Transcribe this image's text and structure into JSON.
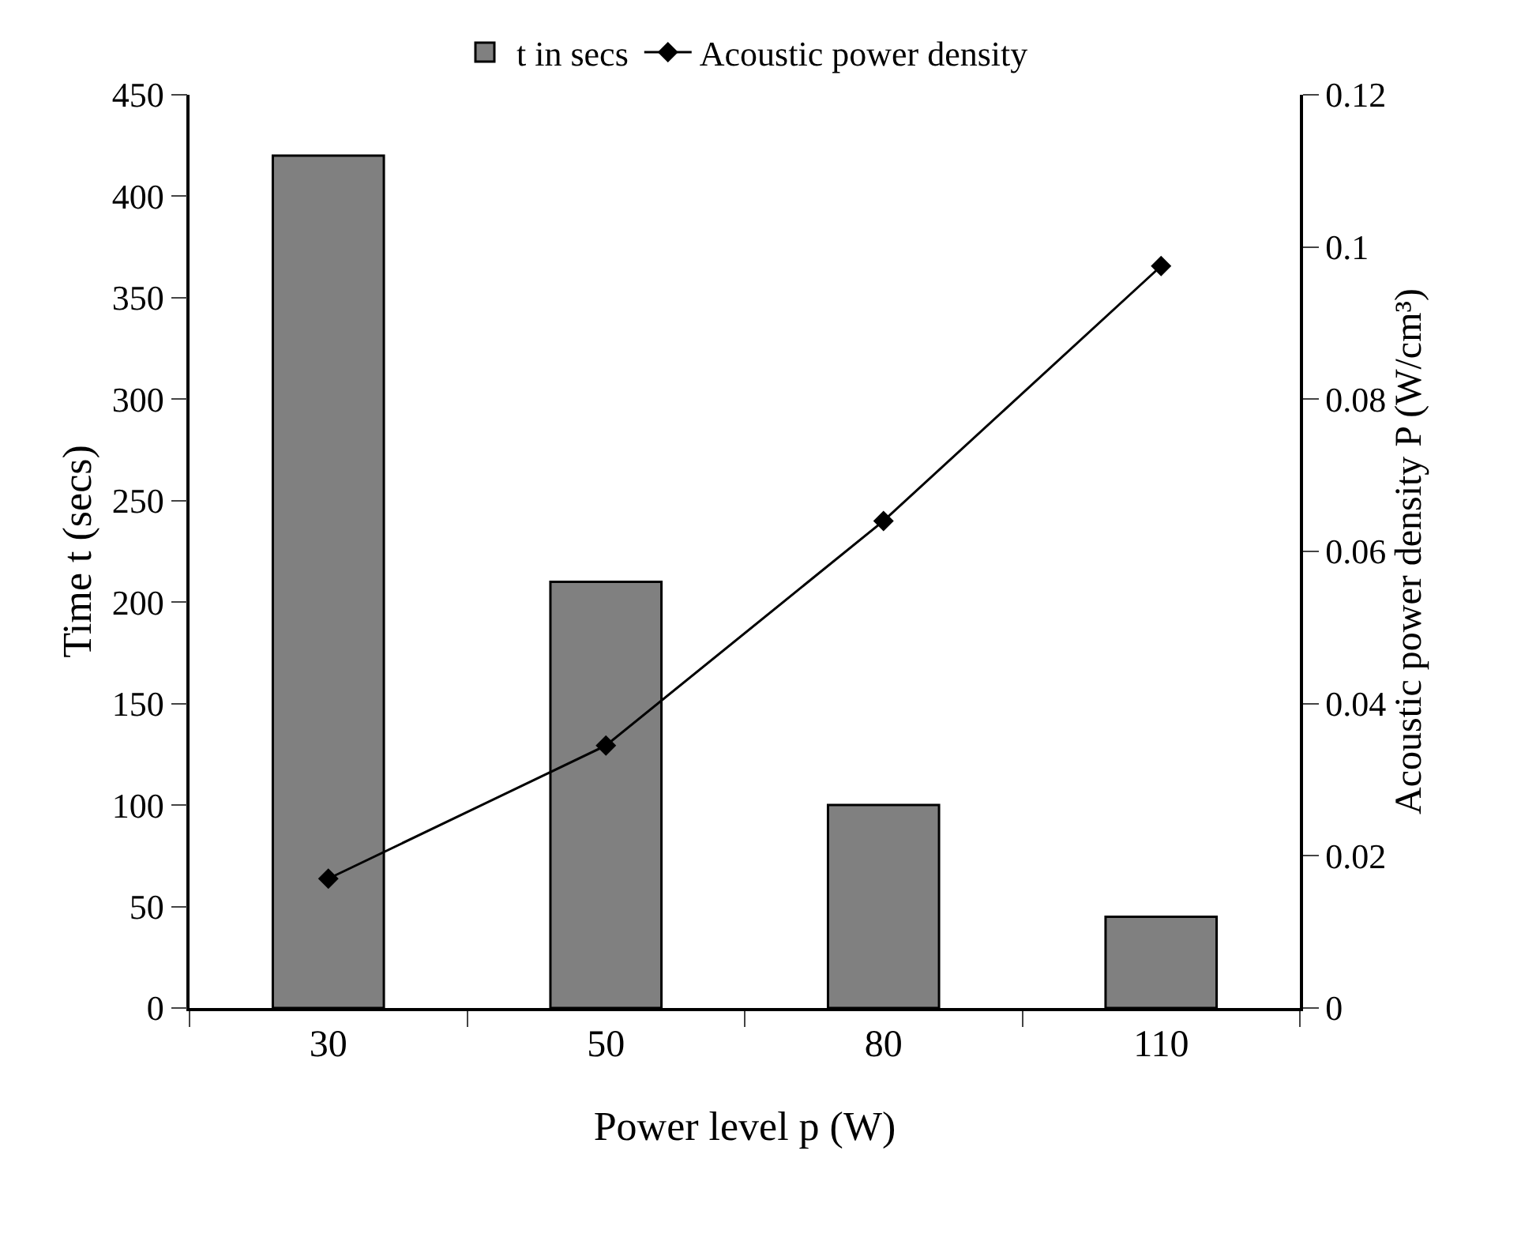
{
  "chart_data": {
    "type": "bar",
    "xlabel": "Power level p (W)",
    "ylabel": "Time t (secs)",
    "y2label": "Acoustic power density P (W/cm³)",
    "categories": [
      "30",
      "50",
      "80",
      "110"
    ],
    "series": [
      {
        "name": "t in secs",
        "color": "#808080",
        "values": [
          420,
          210,
          100,
          45
        ]
      },
      {
        "name": "Acoustic power density",
        "type": "line",
        "axis": "y2",
        "color": "#000000",
        "marker": "diamond",
        "values": [
          0.017,
          0.0345,
          0.064,
          0.0975
        ]
      }
    ],
    "ylim": [
      0,
      450
    ],
    "yticks": [
      0,
      50,
      100,
      150,
      200,
      250,
      300,
      350,
      400,
      450
    ],
    "y2lim": [
      0,
      0.12
    ],
    "y2ticks": [
      0,
      0.02,
      0.04,
      0.06,
      0.08,
      0.1,
      0.12
    ],
    "grid": false,
    "legend": "top"
  }
}
